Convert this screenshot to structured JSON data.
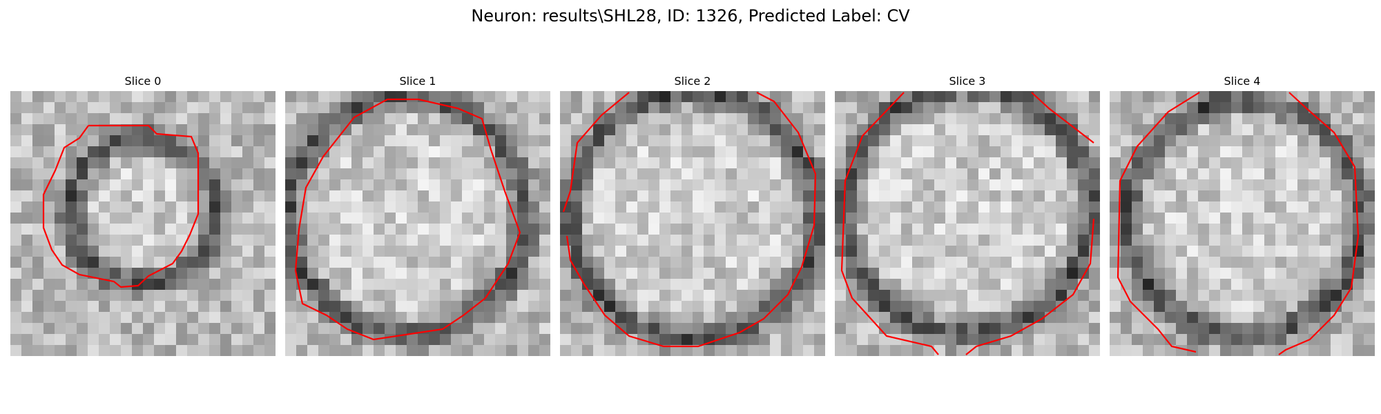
{
  "figure": {
    "title": "Neuron: results\\SHL28, ID: 1326, Predicted Label: CV"
  },
  "contour_color": "#ff0000",
  "panels": [
    {
      "title": "Slice 0"
    },
    {
      "title": "Slice 1"
    },
    {
      "title": "Slice 2"
    },
    {
      "title": "Slice 3"
    },
    {
      "title": "Slice 4"
    }
  ]
}
